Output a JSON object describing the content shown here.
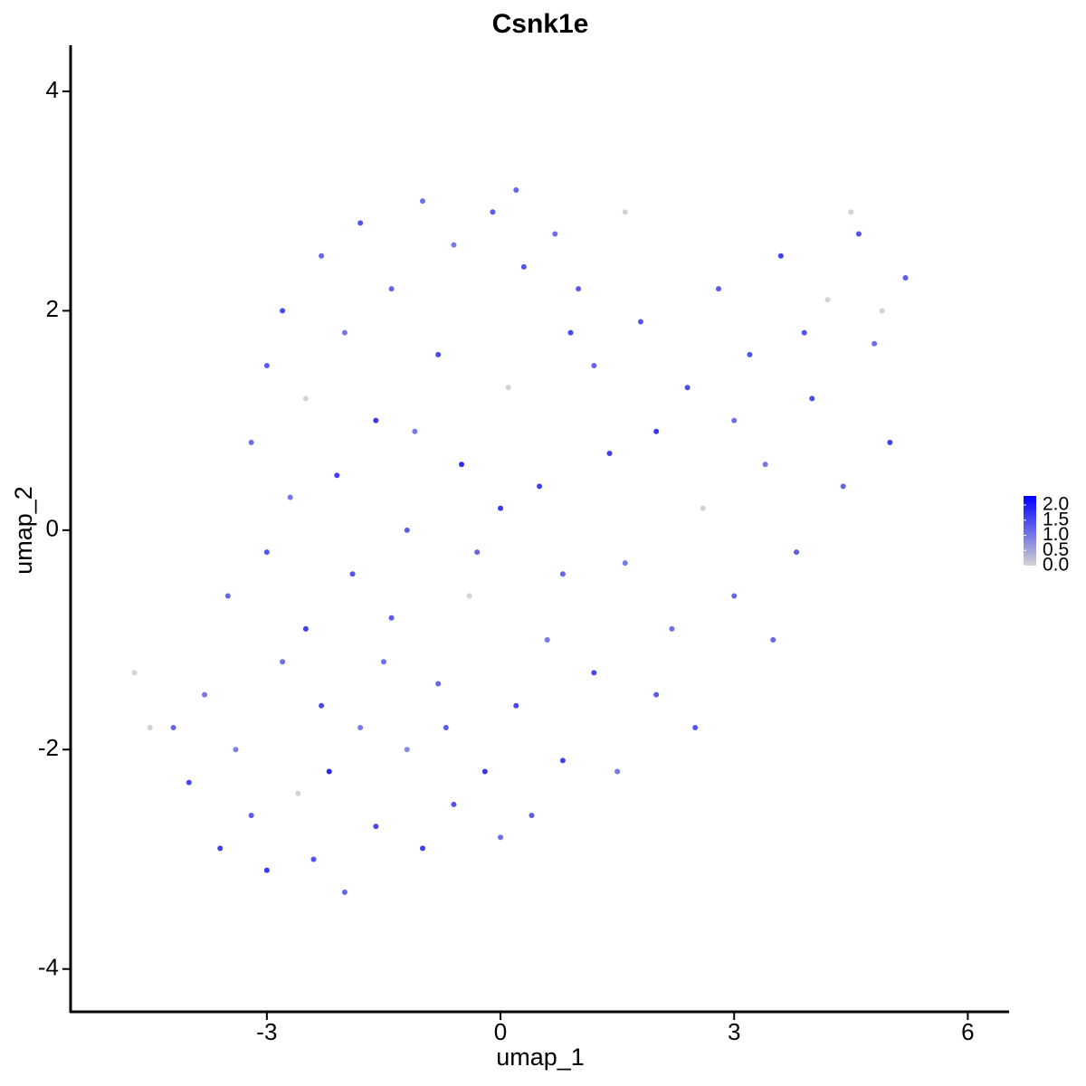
{
  "chart_data": {
    "type": "scatter",
    "title": "Csnk1e",
    "x_label": "umap_1",
    "y_label": "umap_2",
    "xlim": [
      -5.52,
      6.53
    ],
    "ylim": [
      -4.39,
      4.42
    ],
    "xticks": [
      -3,
      0,
      3,
      6
    ],
    "yticks": [
      -4,
      -2,
      0,
      2,
      4
    ],
    "color_low": "#d3d3d3",
    "color_high": "#0000ff",
    "colorlim": [
      0,
      2.3
    ],
    "colorticks": [
      {
        "value": 0,
        "label": "0.0"
      },
      0.5,
      {
        "value": 1,
        "label": "1.0"
      },
      1.5,
      {
        "value": 2,
        "label": "2.0"
      }
    ],
    "x": [
      -4.2,
      -4.0,
      -3.8,
      -3.6,
      -3.4,
      -3.2,
      -3.0,
      -2.8,
      -2.6,
      -2.4,
      -2.2,
      -2.0,
      -1.8,
      -1.6,
      -1.4,
      -1.2,
      -1.0,
      -0.8,
      -0.6,
      -0.4,
      -0.2,
      0.0,
      0.2,
      0.4,
      0.6,
      0.8,
      -3.5,
      -3.0,
      -2.7,
      -2.5,
      -3.2,
      -3.0,
      -2.8,
      -2.5,
      -2.3,
      -2.1,
      -2.0,
      -1.8,
      -1.6,
      -1.4,
      -1.2,
      -1.0,
      -0.8,
      -0.6,
      -0.5,
      -0.3,
      -0.1,
      0.1,
      0.3,
      0.5,
      0.7,
      0.9,
      0.8,
      1.0,
      -1.9,
      -1.5,
      -2.3,
      -1.1,
      0.0,
      -0.7,
      1.2,
      1.4,
      1.6,
      1.8,
      2.0,
      2.2,
      2.4,
      2.6,
      2.8,
      3.0,
      3.2,
      3.4,
      3.6,
      3.8,
      4.0,
      4.2,
      4.4,
      4.6,
      4.8,
      5.0,
      5.2,
      4.5,
      3.5,
      2.5,
      1.5,
      1.2,
      2.0,
      3.0,
      3.9,
      4.9,
      -4.7,
      -4.5,
      1.6,
      0.2
    ],
    "y": [
      -1.8,
      -2.3,
      -1.5,
      -2.9,
      -2.0,
      -2.6,
      -3.1,
      -1.2,
      -2.4,
      -3.0,
      -2.2,
      -3.3,
      -1.8,
      -2.7,
      -0.8,
      -2.0,
      -2.9,
      -1.4,
      -2.5,
      -0.6,
      -2.2,
      -2.8,
      -1.6,
      -2.6,
      -1.0,
      -2.1,
      -0.6,
      -0.2,
      0.3,
      -0.9,
      0.8,
      1.5,
      2.0,
      1.2,
      2.5,
      0.5,
      1.8,
      2.8,
      1.0,
      2.2,
      0.0,
      3.0,
      1.6,
      2.6,
      0.6,
      -0.2,
      2.9,
      1.3,
      2.4,
      0.4,
      2.7,
      1.8,
      -0.4,
      2.2,
      -0.4,
      -1.2,
      -1.6,
      0.9,
      0.2,
      -1.8,
      1.5,
      0.7,
      -0.3,
      1.9,
      0.9,
      -0.9,
      1.3,
      0.2,
      2.2,
      -0.6,
      1.6,
      0.6,
      2.5,
      -0.2,
      1.2,
      2.1,
      0.4,
      2.7,
      1.7,
      0.8,
      2.3,
      2.9,
      -1.0,
      -1.8,
      -2.2,
      -1.3,
      -1.5,
      1.0,
      1.8,
      2.0,
      -1.3,
      -1.8,
      2.9,
      3.1
    ],
    "values": [
      1.2,
      1.5,
      1.0,
      1.6,
      0.9,
      1.3,
      1.7,
      1.1,
      0.0,
      1.4,
      1.9,
      1.2,
      1.0,
      1.5,
      1.3,
      0.8,
      1.6,
      1.2,
      1.4,
      0.0,
      1.7,
      1.1,
      1.5,
      1.3,
      1.0,
      1.6,
      1.2,
      1.4,
      1.0,
      1.6,
      1.1,
      1.3,
      1.5,
      0.0,
      1.2,
      1.6,
      1.0,
      1.4,
      1.7,
      1.2,
      1.3,
      1.1,
      1.5,
      1.0,
      1.8,
      1.2,
      1.3,
      0.0,
      1.4,
      1.6,
      1.1,
      1.5,
      1.2,
      1.3,
      1.4,
      1.1,
      1.5,
      1.0,
      1.7,
      1.3,
      1.2,
      1.6,
      1.0,
      1.4,
      1.7,
      1.1,
      1.5,
      0.0,
      1.3,
      1.2,
      1.4,
      1.0,
      1.6,
      1.3,
      1.5,
      0.0,
      1.2,
      1.4,
      1.1,
      1.6,
      1.3,
      0.0,
      1.2,
      1.4,
      1.0,
      1.5,
      1.3,
      1.1,
      1.4,
      0.0,
      0.0,
      0.0,
      0.0,
      1.2
    ]
  }
}
